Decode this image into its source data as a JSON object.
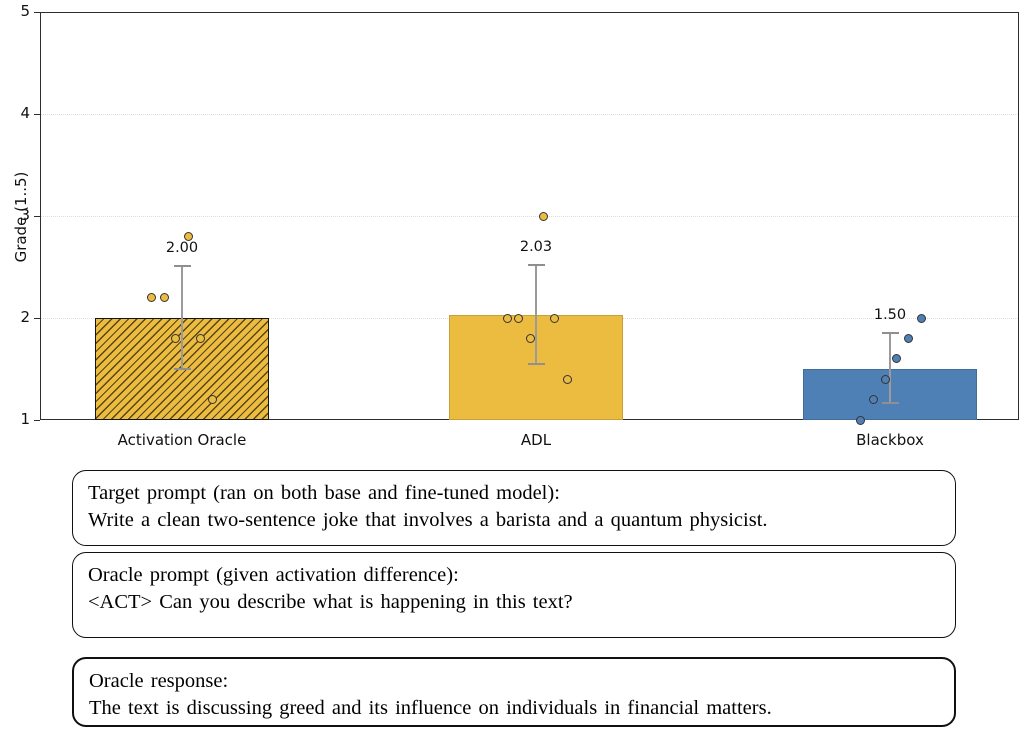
{
  "chart_data": {
    "type": "bar",
    "title": "",
    "xlabel": "",
    "ylabel": "Grade (1..5)",
    "ylim": [
      1,
      5
    ],
    "yticks": [
      1,
      2,
      3,
      4,
      5
    ],
    "grid": "horizontal-dotted",
    "legend": "none",
    "categories": [
      "Activation Oracle",
      "ADL",
      "Blackbox"
    ],
    "series": [
      {
        "name": "Activation Oracle",
        "mean": 2.0,
        "value_label": "2.00",
        "err_low": 1.5,
        "err_high": 2.51,
        "color": "#ECBC41",
        "hatched": true,
        "points": [
          {
            "v": 2.8,
            "dx": 6
          },
          {
            "v": 2.2,
            "dx": -31
          },
          {
            "v": 2.2,
            "dx": -18
          },
          {
            "v": 1.8,
            "dx": -7
          },
          {
            "v": 1.8,
            "dx": 18
          },
          {
            "v": 1.2,
            "dx": 30
          }
        ]
      },
      {
        "name": "ADL",
        "mean": 2.03,
        "value_label": "2.03",
        "err_low": 1.55,
        "err_high": 2.52,
        "color": "#ECBC41",
        "hatched": false,
        "points": [
          {
            "v": 3.0,
            "dx": 7
          },
          {
            "v": 2.0,
            "dx": -29
          },
          {
            "v": 2.0,
            "dx": -18
          },
          {
            "v": 2.0,
            "dx": 18
          },
          {
            "v": 1.8,
            "dx": -6
          },
          {
            "v": 1.4,
            "dx": 31
          }
        ]
      },
      {
        "name": "Blackbox",
        "mean": 1.5,
        "value_label": "1.50",
        "err_low": 1.17,
        "err_high": 1.85,
        "color": "#4E80B6",
        "hatched": false,
        "points": [
          {
            "v": 2.0,
            "dx": 31
          },
          {
            "v": 1.8,
            "dx": 18
          },
          {
            "v": 1.6,
            "dx": 6
          },
          {
            "v": 1.4,
            "dx": -5
          },
          {
            "v": 1.2,
            "dx": -17
          },
          {
            "v": 1.0,
            "dx": -30
          }
        ]
      }
    ]
  },
  "boxes": [
    {
      "title": "Target prompt (ran on both base and fine-tuned model):",
      "body": "Write a clean two-sentence joke that involves a barista and a quantum physicist.",
      "style": "plain"
    },
    {
      "title": "Oracle prompt (given activation difference):",
      "body": "<ACT> Can you describe what is happening in this text?",
      "style": "plain"
    },
    {
      "title": "Oracle response:",
      "body": "The text is discussing greed and its influence on individuals in financial matters.",
      "style": "highlight"
    }
  ],
  "colors": {
    "gold": "#ECBC41",
    "blue": "#4E80B6",
    "error_bar": "#9B9B9B",
    "frame": "#2E2E2E"
  }
}
